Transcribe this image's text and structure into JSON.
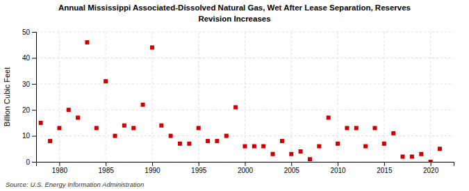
{
  "chart_data": {
    "type": "scatter",
    "title": "Annual Mississippi Associated-Dissolved Natural Gas, Wet After Lease Separation, Reserves",
    "subtitle": "Revision Increases",
    "y_label": "Billion Cubic Feet",
    "annotations": [
      "Source: U.S. Energy Information Administration"
    ],
    "color": "#cc0000",
    "marker": "square",
    "grid": true,
    "xlim": [
      1977.5,
      2022.5
    ],
    "xticks": [
      1980,
      1985,
      1990,
      1995,
      2000,
      2005,
      2010,
      2015,
      2020
    ],
    "ylim": [
      0,
      50
    ],
    "yticks": [
      0,
      10,
      20,
      30,
      40,
      50
    ],
    "x": [
      1978,
      1979,
      1980,
      1981,
      1982,
      1983,
      1984,
      1985,
      1986,
      1987,
      1988,
      1989,
      1990,
      1991,
      1992,
      1993,
      1994,
      1995,
      1996,
      1997,
      1998,
      1999,
      2000,
      2001,
      2002,
      2003,
      2004,
      2005,
      2006,
      2007,
      2008,
      2009,
      2010,
      2011,
      2012,
      2013,
      2014,
      2015,
      2016,
      2017,
      2018,
      2019,
      2020,
      2021
    ],
    "values": [
      15,
      8,
      13,
      20,
      17,
      46,
      13,
      31,
      10,
      14,
      13,
      22,
      44,
      14,
      10,
      7,
      7,
      13,
      8,
      8,
      10,
      21,
      6,
      6,
      6,
      3,
      8,
      3,
      4,
      1,
      6,
      17,
      7,
      13,
      13,
      6,
      13,
      7,
      11,
      2,
      2,
      3,
      0,
      5
    ]
  }
}
